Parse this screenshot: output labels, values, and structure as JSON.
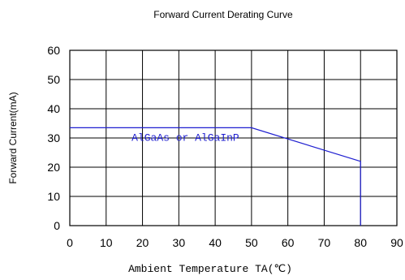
{
  "chart_data": {
    "type": "line",
    "title": "Forward Current Derating Curve",
    "xlabel": "Ambient Temperature TA(℃)",
    "ylabel": "Forward Current(mA)",
    "xlim": [
      0,
      90
    ],
    "ylim": [
      0,
      60
    ],
    "x_ticks": [
      0,
      10,
      20,
      30,
      40,
      50,
      60,
      70,
      80,
      90
    ],
    "y_ticks": [
      0,
      10,
      20,
      30,
      40,
      50,
      60
    ],
    "grid": true,
    "series": [
      {
        "name": "",
        "color": "#1f1fd0",
        "points": [
          [
            0,
            33.5
          ],
          [
            50,
            33.5
          ],
          [
            80,
            22
          ],
          [
            80,
            0
          ]
        ]
      }
    ],
    "annotations": [
      {
        "text": "AlGaAs  or  AlGaInP",
        "x": 17,
        "y": 29,
        "color": "#1f1fd0"
      }
    ]
  }
}
